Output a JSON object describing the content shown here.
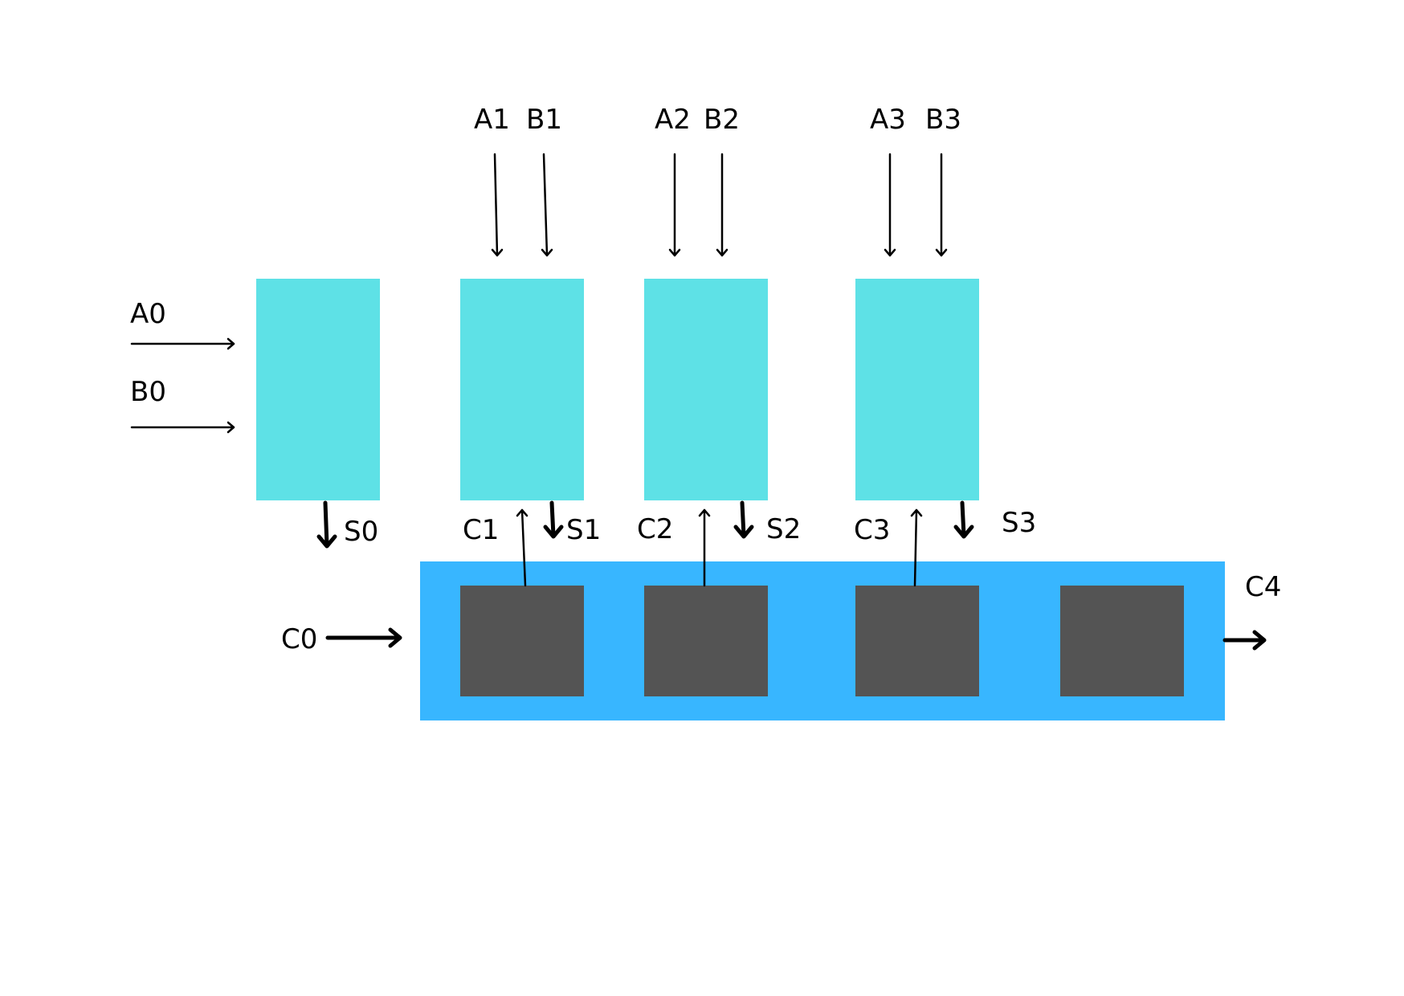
{
  "colors": {
    "adder_block": "#5ee1e6",
    "carry_unit": "#38b6ff",
    "carry_cell": "#545454",
    "line": "#000000",
    "background": "#ffffff"
  },
  "inputs": {
    "a0": "A0",
    "b0": "B0",
    "a1": "A1",
    "b1": "B1",
    "a2": "A2",
    "b2": "B2",
    "a3": "A3",
    "b3": "B3"
  },
  "sums": {
    "s0": "S0",
    "s1": "S1",
    "s2": "S2",
    "s3": "S3"
  },
  "carries": {
    "c0": "C0",
    "c1": "C1",
    "c2": "C2",
    "c3": "C3",
    "c4": "C4"
  }
}
